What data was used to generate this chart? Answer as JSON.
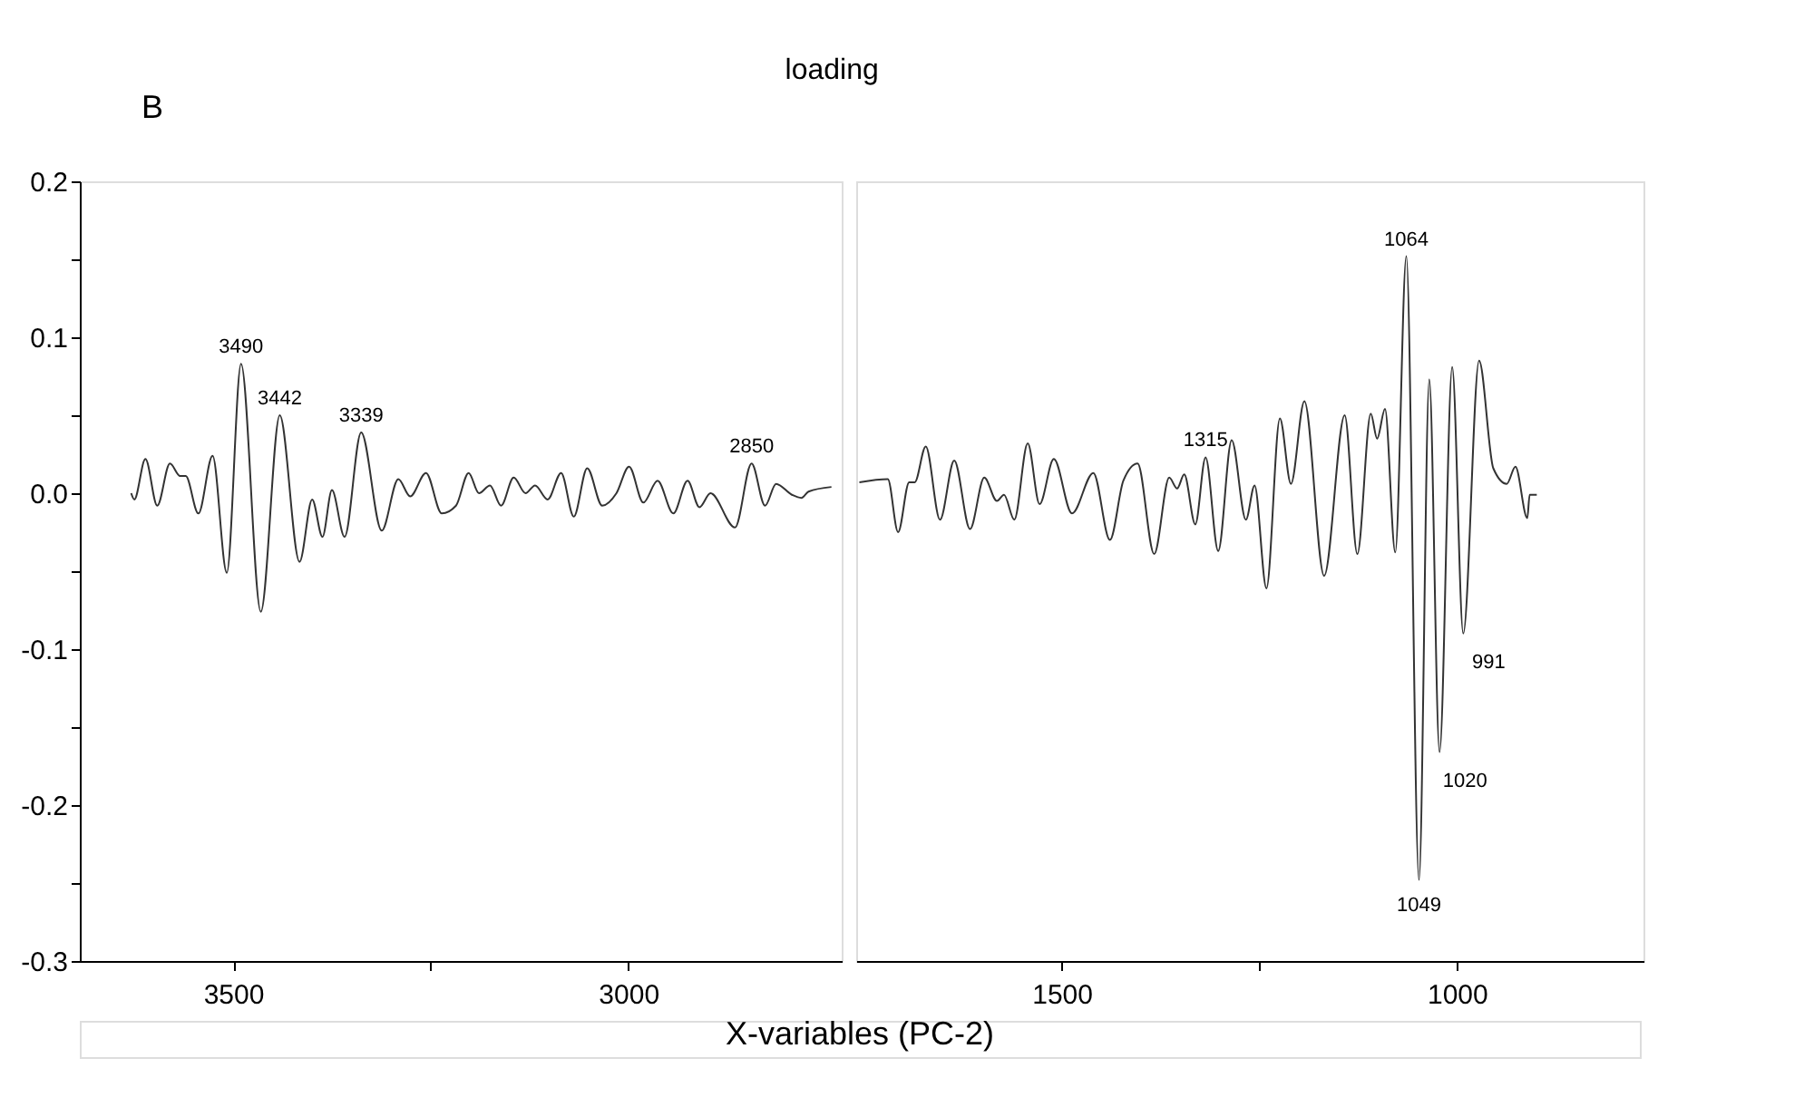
{
  "chart_data": [
    {
      "type": "line",
      "title": "loading",
      "xlabel": "X-variables (PC-2)",
      "color": "#333333",
      "grid": false,
      "x": [
        3629,
        3625,
        3611,
        3596,
        3580,
        3567,
        3560,
        3544,
        3526,
        3508,
        3490,
        3465,
        3441,
        3416,
        3400,
        3387,
        3375,
        3359,
        3338,
        3312,
        3291,
        3276,
        3256,
        3236,
        3218,
        3202,
        3189,
        3175,
        3161,
        3145,
        3130,
        3118,
        3102,
        3085,
        3069,
        3052,
        3033,
        3015,
        2999,
        2981,
        2963,
        2943,
        2925,
        2910,
        2896,
        2865,
        2844,
        2827,
        2813,
        2793,
        2781,
        2772,
        2743
      ],
      "values": [
        0.0,
        -0.004,
        0.022,
        -0.008,
        0.019,
        0.011,
        0.011,
        -0.013,
        0.024,
        -0.051,
        0.083,
        -0.076,
        0.05,
        -0.044,
        -0.004,
        -0.028,
        0.002,
        -0.028,
        0.039,
        -0.024,
        0.009,
        -0.002,
        0.013,
        -0.013,
        -0.008,
        0.013,
        0.0,
        0.005,
        -0.008,
        0.01,
        0.0,
        0.005,
        -0.004,
        0.013,
        -0.015,
        0.016,
        -0.008,
        0.0,
        0.017,
        -0.006,
        0.008,
        -0.013,
        0.008,
        -0.009,
        0.0,
        -0.022,
        0.019,
        -0.008,
        0.006,
        -0.001,
        -0.003,
        0.001,
        0.004
      ],
      "xlim": [
        3694,
        2730
      ],
      "xticks": [
        3500,
        {
          "value": 3250,
          "label": null
        },
        3000
      ],
      "ylim": [
        -0.3,
        0.2
      ],
      "yticks": [
        {
          "value": 0.2,
          "label": "0.2"
        },
        {
          "value": 0.15,
          "label": null
        },
        {
          "value": 0.1,
          "label": "0.1"
        },
        {
          "value": 0.05,
          "label": null
        },
        {
          "value": 0,
          "label": "0.0"
        },
        {
          "value": -0.05,
          "label": null
        },
        {
          "value": -0.1,
          "label": "-0.1"
        },
        {
          "value": -0.15,
          "label": null
        },
        {
          "value": -0.2,
          "label": "-0.2"
        },
        {
          "value": -0.25,
          "label": null
        },
        {
          "value": -0.3,
          "label": "-0.3"
        }
      ],
      "annotations": [
        "B",
        {
          "text": "3490",
          "x": 3490,
          "y": 0.083
        },
        {
          "text": "3442",
          "x": 3441,
          "y": 0.05
        },
        {
          "text": "3339",
          "x": 3338,
          "y": 0.039
        },
        {
          "text": "2850",
          "x": 2844,
          "y": 0.019
        }
      ]
    },
    {
      "type": "line",
      "color": "#333333",
      "grid": false,
      "tick_labels": "x",
      "x": [
        1756,
        1720,
        1707,
        1693,
        1686,
        1672,
        1654,
        1636,
        1616,
        1598,
        1582,
        1573,
        1560,
        1543,
        1528,
        1510,
        1487,
        1460,
        1439,
        1422,
        1404,
        1383,
        1364,
        1354,
        1345,
        1331,
        1318,
        1302,
        1285,
        1267,
        1256,
        1241,
        1224,
        1210,
        1193,
        1168,
        1142,
        1126,
        1109,
        1101,
        1091,
        1078,
        1064,
        1048,
        1035,
        1022,
        1006,
        992,
        972,
        954,
        937,
        926,
        911,
        908,
        899
      ],
      "values": [
        0.007,
        0.009,
        -0.025,
        0.007,
        0.007,
        0.03,
        -0.017,
        0.021,
        -0.023,
        0.01,
        -0.005,
        -0.001,
        -0.017,
        0.032,
        -0.007,
        0.022,
        -0.013,
        0.013,
        -0.03,
        0.008,
        0.019,
        -0.039,
        0.01,
        0.003,
        0.012,
        -0.02,
        0.023,
        -0.037,
        0.034,
        -0.017,
        0.005,
        -0.061,
        0.048,
        0.006,
        0.059,
        -0.053,
        0.05,
        -0.039,
        0.051,
        0.035,
        0.054,
        -0.038,
        0.152,
        -0.248,
        0.073,
        -0.166,
        0.081,
        -0.09,
        0.085,
        0.016,
        0.006,
        0.017,
        -0.016,
        -0.001,
        -0.001
      ],
      "xlim": [
        1760,
        764
      ],
      "xticks": [
        1500,
        {
          "value": 1250,
          "label": null
        },
        1000
      ],
      "ylim": [
        -0.3,
        0.2
      ],
      "annotations": [
        {
          "text": "1315",
          "x": 1318,
          "y": 0.023
        },
        {
          "text": "1064",
          "x": 1064,
          "y": 0.152
        },
        {
          "text": "1049",
          "x": 1048,
          "y": -0.248
        },
        {
          "text": "1020",
          "x": 1022,
          "y": -0.166
        },
        {
          "text": "991",
          "x": 992,
          "y": -0.09
        }
      ]
    }
  ]
}
